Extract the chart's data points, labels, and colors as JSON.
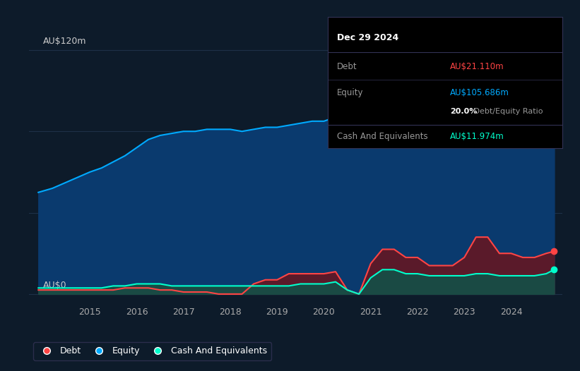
{
  "bg_color": "#0d1b2a",
  "plot_bg_color": "#0d1b2a",
  "ylabel_120": "AU$120m",
  "ylabel_0": "AU$0",
  "x_ticks": [
    2015,
    2016,
    2017,
    2018,
    2019,
    2020,
    2021,
    2022,
    2023,
    2024
  ],
  "equity_color": "#00aaff",
  "equity_fill": "#0a3a6e",
  "debt_color": "#ff4444",
  "debt_fill": "#5a1a2a",
  "cash_color": "#00ffcc",
  "cash_fill": "#1a4a44",
  "grid_color": "#1e3048",
  "tooltip_bg": "#000000",
  "tooltip_border": "#333355",
  "tooltip_date": "Dec 29 2024",
  "tooltip_debt_label": "Debt",
  "tooltip_debt_value": "AU$21.110m",
  "tooltip_equity_label": "Equity",
  "tooltip_equity_value": "AU$105.686m",
  "tooltip_ratio_bold": "20.0%",
  "tooltip_ratio_rest": " Debt/Equity Ratio",
  "tooltip_cash_label": "Cash And Equivalents",
  "tooltip_cash_value": "AU$11.974m",
  "legend_debt": "Debt",
  "legend_equity": "Equity",
  "legend_cash": "Cash And Equivalents",
  "dates": [
    2013.9,
    2014.2,
    2014.5,
    2014.8,
    2015.0,
    2015.25,
    2015.5,
    2015.75,
    2016.0,
    2016.25,
    2016.5,
    2016.75,
    2017.0,
    2017.25,
    2017.5,
    2017.75,
    2018.0,
    2018.25,
    2018.5,
    2018.75,
    2019.0,
    2019.25,
    2019.5,
    2019.75,
    2020.0,
    2020.25,
    2020.5,
    2020.75,
    2021.0,
    2021.25,
    2021.5,
    2021.75,
    2022.0,
    2022.25,
    2022.5,
    2022.75,
    2023.0,
    2023.25,
    2023.5,
    2023.75,
    2024.0,
    2024.25,
    2024.5,
    2024.75,
    2024.92
  ],
  "equity": [
    50,
    52,
    55,
    58,
    60,
    62,
    65,
    68,
    72,
    76,
    78,
    79,
    80,
    80,
    81,
    81,
    81,
    80,
    81,
    82,
    82,
    83,
    84,
    85,
    85,
    87,
    90,
    95,
    100,
    115,
    112,
    108,
    106,
    102,
    100,
    103,
    105,
    118,
    115,
    110,
    107,
    100,
    98,
    102,
    106
  ],
  "debt": [
    2,
    2,
    2,
    2,
    2,
    2,
    2,
    3,
    3,
    3,
    2,
    2,
    1,
    1,
    1,
    0,
    0,
    0,
    5,
    7,
    7,
    10,
    10,
    10,
    10,
    11,
    2,
    0,
    15,
    22,
    22,
    18,
    18,
    14,
    14,
    14,
    18,
    28,
    28,
    20,
    20,
    18,
    18,
    20,
    21
  ],
  "cash": [
    3,
    3,
    3,
    3,
    3,
    3,
    4,
    4,
    5,
    5,
    5,
    4,
    4,
    4,
    4,
    4,
    4,
    4,
    4,
    4,
    4,
    4,
    5,
    5,
    5,
    6,
    2,
    0,
    8,
    12,
    12,
    10,
    10,
    9,
    9,
    9,
    9,
    10,
    10,
    9,
    9,
    9,
    9,
    10,
    12
  ],
  "xmin": 2013.7,
  "xmax": 2025.1,
  "ymin": -5,
  "ymax": 130,
  "dot_x": 2024.92,
  "dot_equity_y": 106,
  "dot_debt_y": 21,
  "dot_cash_y": 12
}
